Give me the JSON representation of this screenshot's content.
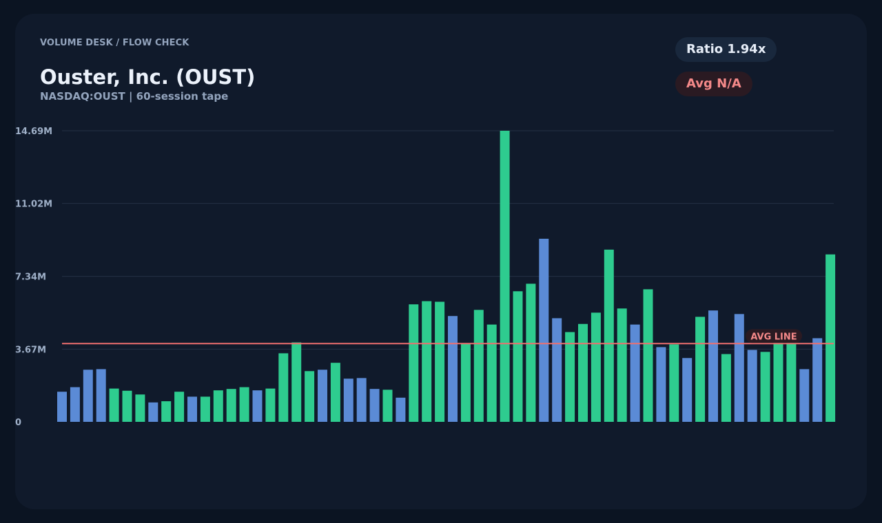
{
  "header": {
    "breadcrumb": "VOLUME DESK / FLOW CHECK",
    "title": "Ouster, Inc. (OUST)",
    "subtitle": "NASDAQ:OUST | 60-session tape"
  },
  "badges": {
    "ratio": "Ratio 1.94x",
    "avg": "Avg N/A"
  },
  "colors": {
    "panel_bg": "#101a2b",
    "page_bg": "#0b1422",
    "up": "#2ecc8f",
    "down": "#5b8bd6",
    "avg_line": "#ef6f6f",
    "grid": "#243246"
  },
  "chart_data": {
    "type": "bar",
    "ylim": [
      0,
      14.69
    ],
    "y_unit": "M",
    "ytick_labels": [
      "0",
      "3.67M",
      "7.34M",
      "11.02M",
      "14.69M"
    ],
    "ytick_values": [
      0,
      3.67,
      7.34,
      11.02,
      14.69
    ],
    "grid": true,
    "avg_line": {
      "value": 3.95,
      "label": "AVG LINE"
    },
    "bars": [
      {
        "v": 1.52,
        "d": "down"
      },
      {
        "v": 1.75,
        "d": "down"
      },
      {
        "v": 2.63,
        "d": "down"
      },
      {
        "v": 2.66,
        "d": "down"
      },
      {
        "v": 1.68,
        "d": "up"
      },
      {
        "v": 1.57,
        "d": "up"
      },
      {
        "v": 1.38,
        "d": "up"
      },
      {
        "v": 0.98,
        "d": "down"
      },
      {
        "v": 1.04,
        "d": "up"
      },
      {
        "v": 1.52,
        "d": "up"
      },
      {
        "v": 1.27,
        "d": "down"
      },
      {
        "v": 1.27,
        "d": "up"
      },
      {
        "v": 1.59,
        "d": "up"
      },
      {
        "v": 1.66,
        "d": "up"
      },
      {
        "v": 1.75,
        "d": "up"
      },
      {
        "v": 1.59,
        "d": "down"
      },
      {
        "v": 1.68,
        "d": "up"
      },
      {
        "v": 3.46,
        "d": "up"
      },
      {
        "v": 4.01,
        "d": "up"
      },
      {
        "v": 2.56,
        "d": "up"
      },
      {
        "v": 2.63,
        "d": "down"
      },
      {
        "v": 2.98,
        "d": "up"
      },
      {
        "v": 2.18,
        "d": "down"
      },
      {
        "v": 2.21,
        "d": "down"
      },
      {
        "v": 1.66,
        "d": "down"
      },
      {
        "v": 1.62,
        "d": "up"
      },
      {
        "v": 1.22,
        "d": "down"
      },
      {
        "v": 5.93,
        "d": "up"
      },
      {
        "v": 6.09,
        "d": "up"
      },
      {
        "v": 6.06,
        "d": "up"
      },
      {
        "v": 5.34,
        "d": "down"
      },
      {
        "v": 3.95,
        "d": "up"
      },
      {
        "v": 5.65,
        "d": "up"
      },
      {
        "v": 4.91,
        "d": "up"
      },
      {
        "v": 14.69,
        "d": "up"
      },
      {
        "v": 6.59,
        "d": "up"
      },
      {
        "v": 6.97,
        "d": "up"
      },
      {
        "v": 9.24,
        "d": "down"
      },
      {
        "v": 5.23,
        "d": "down"
      },
      {
        "v": 4.53,
        "d": "up"
      },
      {
        "v": 4.94,
        "d": "up"
      },
      {
        "v": 5.51,
        "d": "up"
      },
      {
        "v": 8.69,
        "d": "up"
      },
      {
        "v": 5.72,
        "d": "up"
      },
      {
        "v": 4.91,
        "d": "down"
      },
      {
        "v": 6.69,
        "d": "up"
      },
      {
        "v": 3.77,
        "d": "down"
      },
      {
        "v": 3.91,
        "d": "up"
      },
      {
        "v": 3.22,
        "d": "down"
      },
      {
        "v": 5.3,
        "d": "up"
      },
      {
        "v": 5.62,
        "d": "down"
      },
      {
        "v": 3.42,
        "d": "up"
      },
      {
        "v": 5.44,
        "d": "down"
      },
      {
        "v": 3.63,
        "d": "down"
      },
      {
        "v": 3.53,
        "d": "up"
      },
      {
        "v": 4.67,
        "d": "up"
      },
      {
        "v": 4.67,
        "d": "up"
      },
      {
        "v": 2.66,
        "d": "down"
      },
      {
        "v": 4.22,
        "d": "down"
      },
      {
        "v": 8.45,
        "d": "up"
      }
    ]
  }
}
